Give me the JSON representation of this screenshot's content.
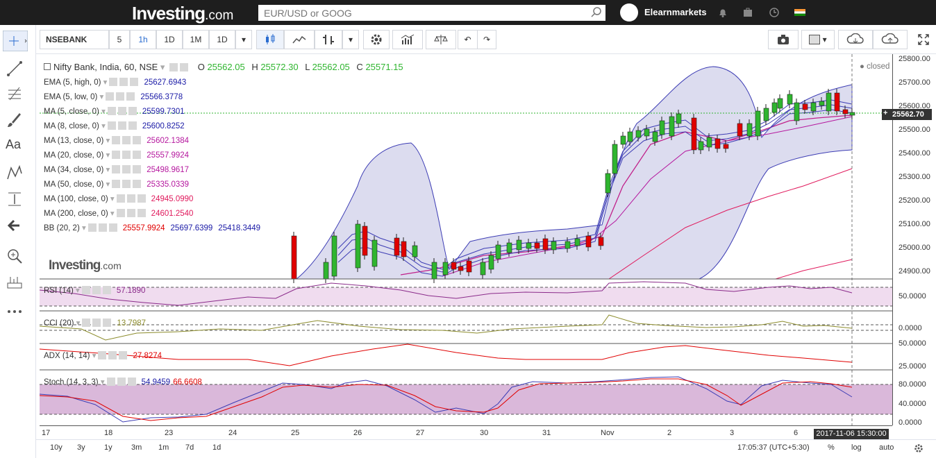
{
  "topbar": {
    "logo": "Investing",
    "logo_suffix": ".com",
    "search_placeholder": "EUR/USD or GOOG",
    "username": "Elearnmarkets"
  },
  "toolbar": {
    "symbol": "NSEBANK",
    "intervals": [
      "5",
      "1h",
      "1D",
      "1M",
      "1D"
    ],
    "active_interval": "1h"
  },
  "legend": {
    "title": "Nifty Bank, India, 60, NSE",
    "ohlc": {
      "o_label": "O",
      "o": "25562.05",
      "h_label": "H",
      "h": "25572.30",
      "l_label": "L",
      "l": "25562.05",
      "c_label": "C",
      "c": "25571.15"
    },
    "closed": "closed",
    "indicators": [
      {
        "name": "EMA (5, high, 0)",
        "value": "25627.6943",
        "color": "#1a1aa6"
      },
      {
        "name": "EMA (5, low, 0)",
        "value": "25566.3778",
        "color": "#1a1aa6"
      },
      {
        "name": "MA (5, close, 0)",
        "value": "25599.7301",
        "color": "#1a1aa6"
      },
      {
        "name": "MA (8, close, 0)",
        "value": "25600.8252",
        "color": "#1a1aa6"
      },
      {
        "name": "MA (13, close, 0)",
        "value": "25602.1384",
        "color": "#b5179e"
      },
      {
        "name": "MA (20, close, 0)",
        "value": "25557.9924",
        "color": "#b5179e"
      },
      {
        "name": "MA (34, close, 0)",
        "value": "25498.9617",
        "color": "#b5179e"
      },
      {
        "name": "MA (50, close, 0)",
        "value": "25335.0339",
        "color": "#b5179e"
      },
      {
        "name": "MA (100, close, 0)",
        "value": "24945.0990",
        "color": "#e0195c"
      },
      {
        "name": "MA (200, close, 0)",
        "value": "24601.2540",
        "color": "#e0195c"
      }
    ],
    "bb": {
      "name": "BB (20, 2)",
      "v1": "25557.9924",
      "v2": "25697.6399",
      "v3": "25418.3449"
    }
  },
  "price_axis": [
    "25800.00",
    "25700.00",
    "25600.00",
    "25500.00",
    "25400.00",
    "25300.00",
    "25200.00",
    "25100.00",
    "25000.00",
    "24900.00"
  ],
  "last_price": "25562.70",
  "rsi": {
    "name": "RSI (14)",
    "value": "57.1890",
    "axis": [
      "50.0000"
    ]
  },
  "cci": {
    "name": "CCI (20)",
    "value": "13.7987",
    "axis": [
      "0.0000"
    ]
  },
  "adx": {
    "name": "ADX (14, 14)",
    "value": "27.8274",
    "axis": [
      "50.0000",
      "25.0000"
    ]
  },
  "stoch": {
    "name": "Stoch (14, 3, 3)",
    "v1": "54.9459",
    "v2": "66.6608",
    "axis": [
      "80.0000",
      "40.0000",
      "0.0000"
    ]
  },
  "x_axis": [
    "17",
    "18",
    "23",
    "24",
    "25",
    "26",
    "27",
    "30",
    "31",
    "Nov",
    "2",
    "3",
    "6"
  ],
  "time_tag": "2017-11-06 15:30:00",
  "bottom": {
    "ranges": [
      "10y",
      "3y",
      "1y",
      "3m",
      "1m",
      "7d",
      "1d"
    ],
    "clock": "17:05:37 (UTC+5:30)",
    "pct": "%",
    "log": "log",
    "auto": "auto"
  },
  "colors": {
    "up": "#2fb52f",
    "down": "#e00000",
    "bb_fill": "#dcdcef",
    "rsi_fill": "#f0dcef",
    "stoch_fill": "#dab8da"
  }
}
